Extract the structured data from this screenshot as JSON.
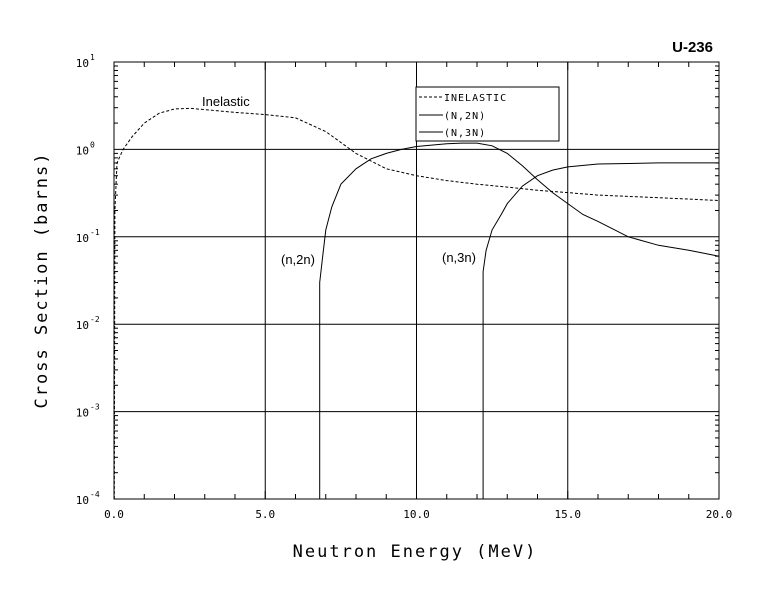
{
  "chart_data": {
    "type": "line",
    "title": "U-236",
    "xlabel": "Neutron Energy (MeV)",
    "ylabel": "Cross Section (barns)",
    "xlim": [
      0,
      20
    ],
    "ylim": [
      0.0001,
      10
    ],
    "yscale": "log",
    "grid": true,
    "legend_position": "top-right",
    "x_ticks": [
      "0.0",
      "5.0",
      "10.0",
      "15.0",
      "20.0"
    ],
    "x_tick_values": [
      0,
      5,
      10,
      15,
      20
    ],
    "y_ticks": [
      {
        "base": "10",
        "exp": "1",
        "value": 10
      },
      {
        "base": "10",
        "exp": "0",
        "value": 1
      },
      {
        "base": "10",
        "exp": "-1",
        "value": 0.1
      },
      {
        "base": "10",
        "exp": "-2",
        "value": 0.01
      },
      {
        "base": "10",
        "exp": "-3",
        "value": 0.001
      },
      {
        "base": "10",
        "exp": "-4",
        "value": 0.0001
      }
    ],
    "series": [
      {
        "name": "INELASTIC",
        "style": "dashed",
        "annotation": "Inelastic",
        "points": [
          [
            0.01,
            0.0001
          ],
          [
            0.03,
            0.2
          ],
          [
            0.1,
            0.7
          ],
          [
            0.3,
            1.0
          ],
          [
            0.6,
            1.4
          ],
          [
            1.0,
            2.0
          ],
          [
            1.5,
            2.6
          ],
          [
            2.0,
            2.9
          ],
          [
            2.5,
            2.95
          ],
          [
            3.0,
            2.85
          ],
          [
            4.0,
            2.65
          ],
          [
            5.0,
            2.5
          ],
          [
            6.0,
            2.3
          ],
          [
            7.0,
            1.6
          ],
          [
            8.0,
            0.9
          ],
          [
            9.0,
            0.6
          ],
          [
            10.0,
            0.5
          ],
          [
            11.0,
            0.44
          ],
          [
            12.0,
            0.4
          ],
          [
            13.0,
            0.37
          ],
          [
            14.0,
            0.34
          ],
          [
            15.0,
            0.32
          ],
          [
            16.0,
            0.3
          ],
          [
            17.0,
            0.29
          ],
          [
            18.0,
            0.28
          ],
          [
            19.0,
            0.27
          ],
          [
            20.0,
            0.26
          ]
        ]
      },
      {
        "name": "(N,2N)",
        "style": "solid",
        "annotation": "(n,2n)",
        "points": [
          [
            6.8,
            0.0001
          ],
          [
            6.8,
            0.03
          ],
          [
            6.9,
            0.06
          ],
          [
            7.0,
            0.12
          ],
          [
            7.2,
            0.22
          ],
          [
            7.5,
            0.4
          ],
          [
            8.0,
            0.6
          ],
          [
            8.5,
            0.78
          ],
          [
            9.0,
            0.9
          ],
          [
            9.5,
            1.0
          ],
          [
            10.0,
            1.08
          ],
          [
            10.5,
            1.12
          ],
          [
            11.0,
            1.16
          ],
          [
            11.5,
            1.18
          ],
          [
            12.0,
            1.18
          ],
          [
            12.5,
            1.1
          ],
          [
            13.0,
            0.9
          ],
          [
            13.5,
            0.65
          ],
          [
            14.0,
            0.45
          ],
          [
            14.5,
            0.32
          ],
          [
            15.0,
            0.24
          ],
          [
            15.5,
            0.18
          ],
          [
            16.0,
            0.15
          ],
          [
            17.0,
            0.1
          ],
          [
            18.0,
            0.08
          ],
          [
            19.0,
            0.07
          ],
          [
            20.0,
            0.06
          ]
        ]
      },
      {
        "name": "(N,3N)",
        "style": "solid",
        "annotation": "(n,3n)",
        "points": [
          [
            12.2,
            0.0001
          ],
          [
            12.2,
            0.04
          ],
          [
            12.3,
            0.07
          ],
          [
            12.5,
            0.12
          ],
          [
            12.8,
            0.18
          ],
          [
            13.0,
            0.24
          ],
          [
            13.5,
            0.38
          ],
          [
            14.0,
            0.5
          ],
          [
            14.5,
            0.58
          ],
          [
            15.0,
            0.63
          ],
          [
            16.0,
            0.68
          ],
          [
            17.0,
            0.69
          ],
          [
            18.0,
            0.7
          ],
          [
            19.0,
            0.7
          ],
          [
            20.0,
            0.7
          ]
        ]
      }
    ]
  }
}
